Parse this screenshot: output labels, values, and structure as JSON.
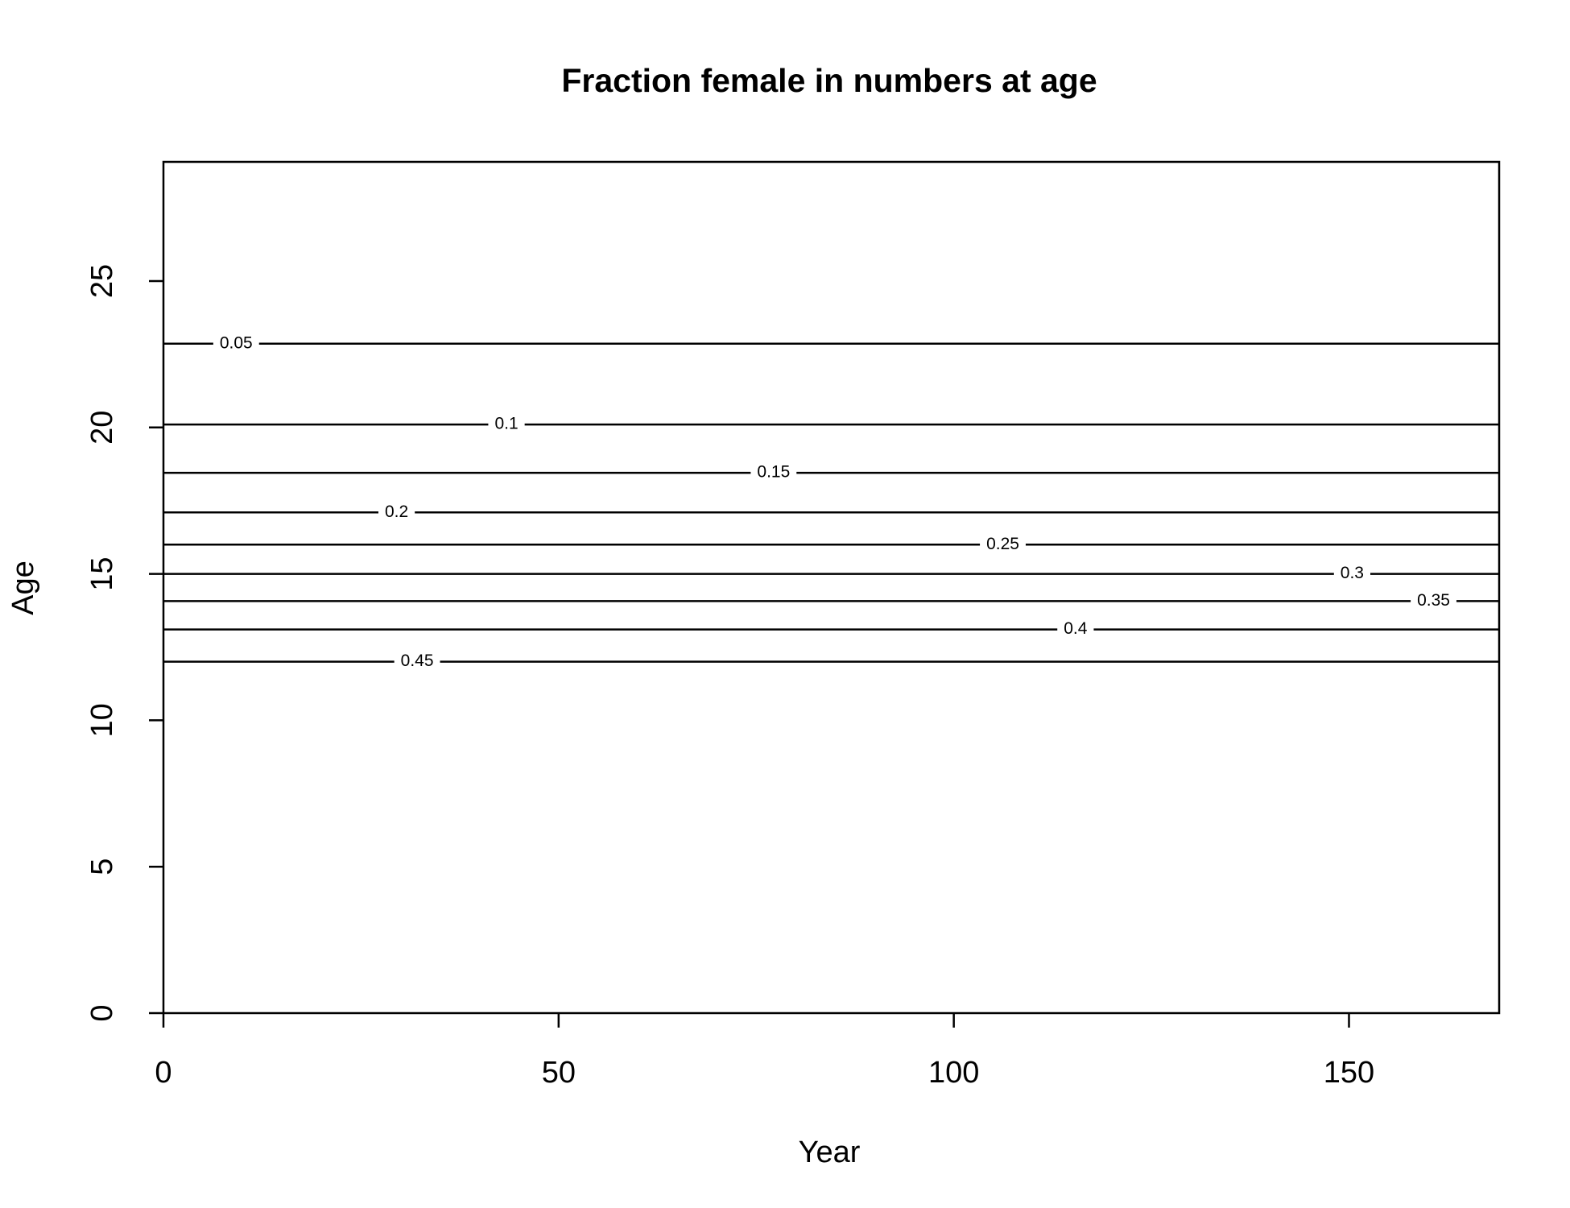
{
  "chart_data": {
    "type": "contour",
    "title": "Fraction female in numbers at age",
    "xlabel": "Year",
    "ylabel": "Age",
    "xlim": [
      0,
      169
    ],
    "ylim": [
      0,
      29.07
    ],
    "xticks": [
      0,
      50,
      100,
      150
    ],
    "yticks": [
      0,
      5,
      10,
      15,
      20,
      25
    ],
    "color": "#000000",
    "contours": [
      {
        "level": 0.05,
        "y": 22.86,
        "label_x": 9.2
      },
      {
        "level": 0.1,
        "y": 20.1,
        "label_x": 43.4
      },
      {
        "level": 0.15,
        "y": 18.45,
        "label_x": 77.2
      },
      {
        "level": 0.2,
        "y": 17.1,
        "label_x": 29.5
      },
      {
        "level": 0.25,
        "y": 16.0,
        "label_x": 106.2
      },
      {
        "level": 0.3,
        "y": 15.0,
        "label_x": 150.4
      },
      {
        "level": 0.35,
        "y": 14.07,
        "label_x": 160.7
      },
      {
        "level": 0.4,
        "y": 13.1,
        "label_x": 115.4
      },
      {
        "level": 0.45,
        "y": 12.0,
        "label_x": 32.1
      }
    ]
  }
}
